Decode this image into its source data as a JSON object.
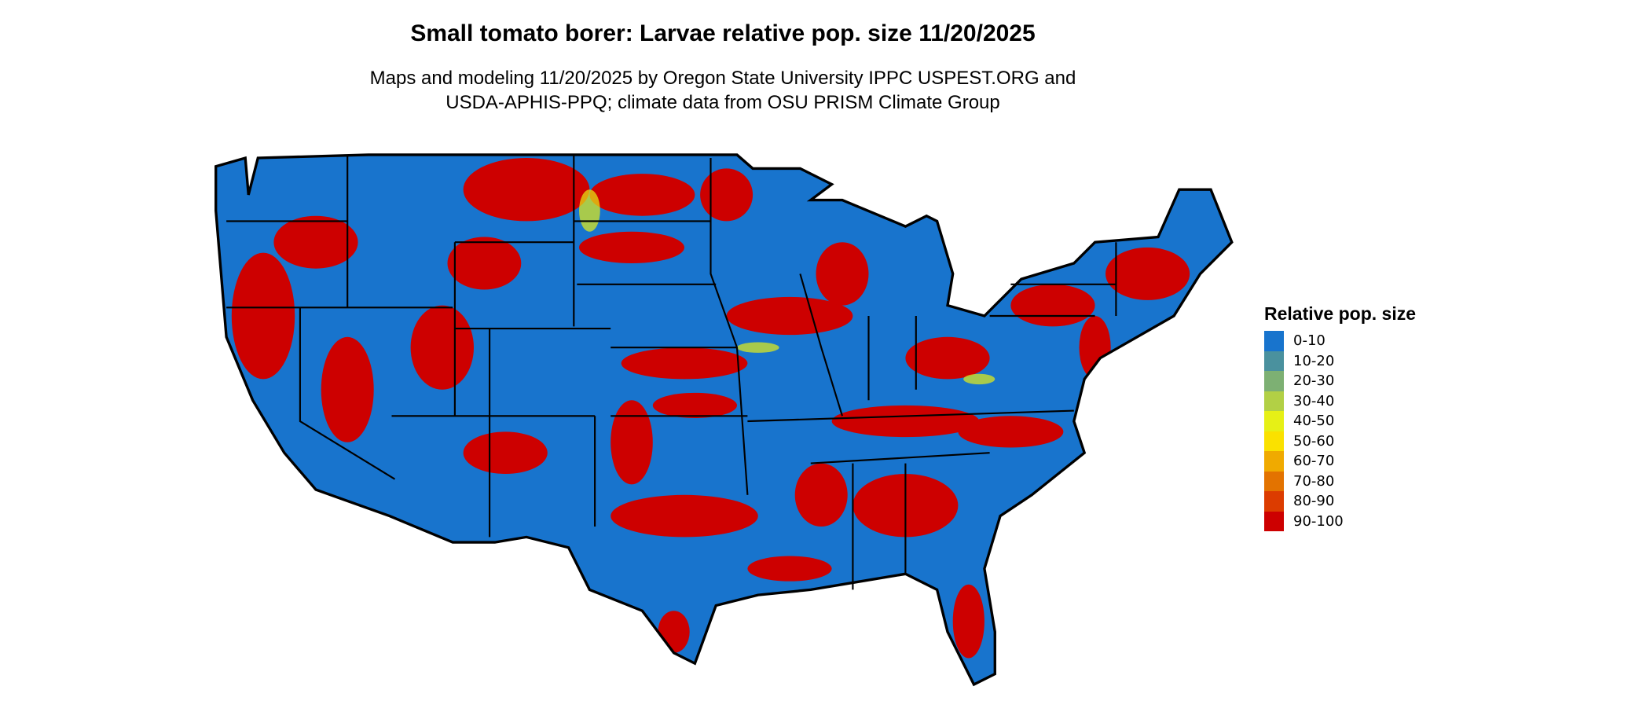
{
  "title": "Small tomato borer: Larvae relative pop. size 11/20/2025",
  "subtitle_line1": "Maps and modeling 11/20/2025 by Oregon State University IPPC USPEST.ORG and",
  "subtitle_line2": "USDA-APHIS-PPQ; climate data from OSU PRISM Climate Group",
  "legend": {
    "title": "Relative pop. size",
    "items": [
      {
        "label": "0-10",
        "color": "#1874CD"
      },
      {
        "label": "10-20",
        "color": "#4A919E"
      },
      {
        "label": "20-30",
        "color": "#7DB073"
      },
      {
        "label": "30-40",
        "color": "#B2D045"
      },
      {
        "label": "40-50",
        "color": "#E6F016"
      },
      {
        "label": "50-60",
        "color": "#FAE100"
      },
      {
        "label": "60-70",
        "color": "#F0AA00"
      },
      {
        "label": "70-80",
        "color": "#E37300"
      },
      {
        "label": "80-90",
        "color": "#DC3C00"
      },
      {
        "label": "90-100",
        "color": "#CD0000"
      }
    ]
  },
  "map": {
    "region": "Contiguous United States",
    "base_color": "#1874CD",
    "hot_color": "#CD0000",
    "border_color": "#000000"
  }
}
